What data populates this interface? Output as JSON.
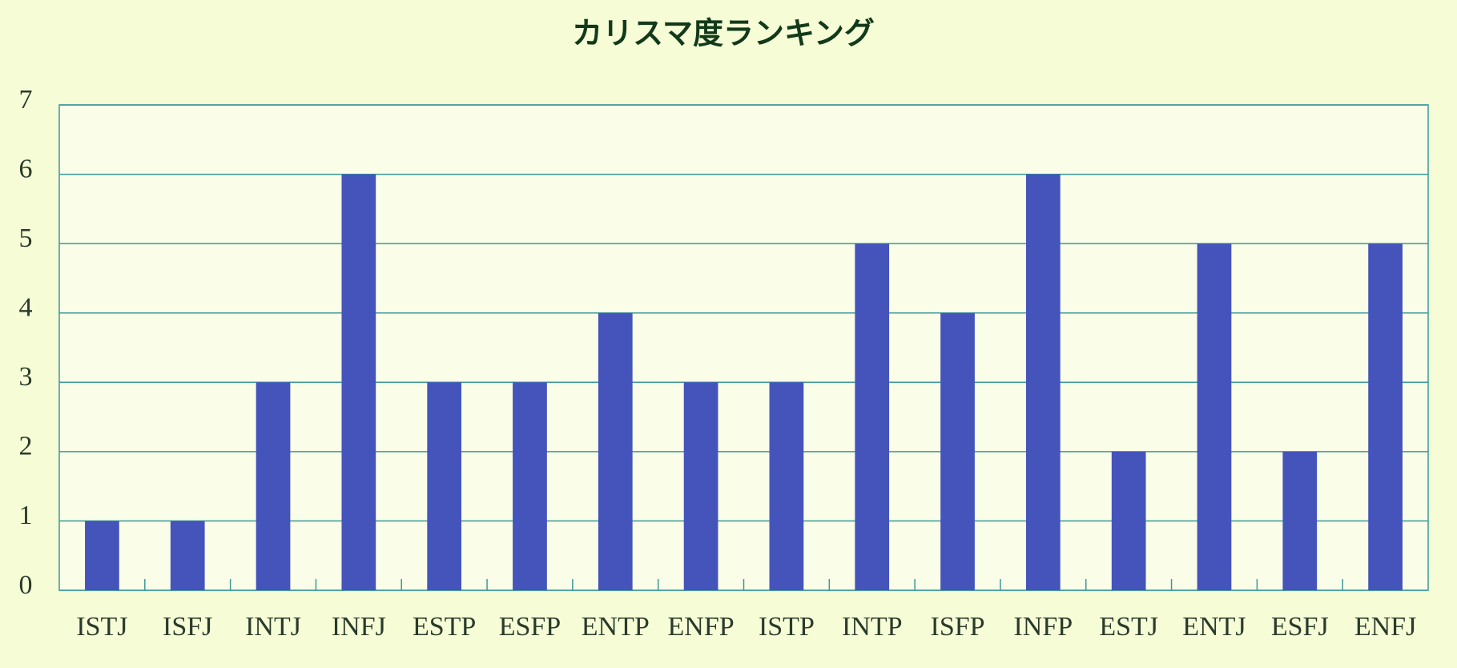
{
  "chart_data": {
    "type": "bar",
    "title": "カリスマ度ランキング",
    "categories": [
      "ISTJ",
      "ISFJ",
      "INTJ",
      "INFJ",
      "ESTP",
      "ESFP",
      "ENTP",
      "ENFP",
      "ISTP",
      "INTP",
      "ISFP",
      "INFP",
      "ESTJ",
      "ENTJ",
      "ESFJ",
      "ENFJ"
    ],
    "values": [
      1,
      1,
      3,
      6,
      3,
      3,
      4,
      3,
      3,
      5,
      4,
      6,
      2,
      5,
      2,
      5
    ],
    "color": "#4554bb",
    "ylim": [
      0,
      7
    ],
    "yticks": [
      0,
      1,
      2,
      3,
      4,
      5,
      6,
      7
    ],
    "grid": true
  }
}
